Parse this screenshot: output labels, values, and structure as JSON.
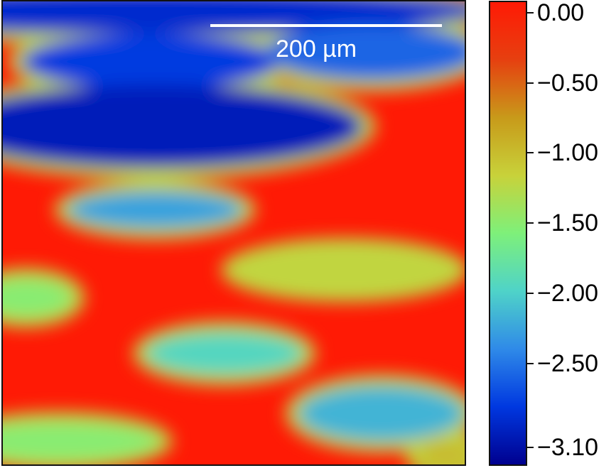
{
  "chart_data": {
    "type": "heatmap",
    "title": "",
    "xlabel": "",
    "ylabel": "",
    "value_range": [
      -3.1,
      0.0
    ],
    "colormap": [
      "#00008f",
      "#0038e0",
      "#2f8ae8",
      "#4fd3c8",
      "#7ef07a",
      "#c8d23a",
      "#c89a1a",
      "#e64010",
      "#ff1a05"
    ],
    "colorbar": {
      "ticks": [
        {
          "value": 0.0,
          "label": "0.00"
        },
        {
          "value": -0.5,
          "label": "−0.50"
        },
        {
          "value": -1.0,
          "label": "−1.00"
        },
        {
          "value": -1.5,
          "label": "−1.50"
        },
        {
          "value": -2.0,
          "label": "−2.00"
        },
        {
          "value": -2.5,
          "label": "−2.50"
        },
        {
          "value": -3.1,
          "label": "−3.10"
        }
      ]
    },
    "scale_bar": {
      "label": "200 µm"
    },
    "background_value": 0.0,
    "regions": [
      {
        "name": "top-band",
        "value": -2.8,
        "cx": 0.3,
        "cy": 0.02,
        "rx": 0.75,
        "ry": 0.05
      },
      {
        "name": "upper-left-blob",
        "value": -2.7,
        "cx": 0.32,
        "cy": 0.13,
        "rx": 0.28,
        "ry": 0.06
      },
      {
        "name": "upper-right-blob",
        "value": -2.5,
        "cx": 0.8,
        "cy": 0.11,
        "rx": 0.23,
        "ry": 0.06
      },
      {
        "name": "middle-left-blob",
        "value": -2.9,
        "cx": 0.33,
        "cy": 0.27,
        "rx": 0.45,
        "ry": 0.09
      },
      {
        "name": "center-blob",
        "value": -2.2,
        "cx": 0.33,
        "cy": 0.45,
        "rx": 0.19,
        "ry": 0.04
      },
      {
        "name": "right-band",
        "value": -1.2,
        "cx": 0.74,
        "cy": 0.58,
        "rx": 0.24,
        "ry": 0.045
      },
      {
        "name": "left-edge-blob",
        "value": -1.5,
        "cx": 0.05,
        "cy": 0.64,
        "rx": 0.1,
        "ry": 0.04
      },
      {
        "name": "lower-center-blob",
        "value": -1.9,
        "cx": 0.48,
        "cy": 0.76,
        "rx": 0.17,
        "ry": 0.045
      },
      {
        "name": "lower-right-blob",
        "value": -2.1,
        "cx": 0.82,
        "cy": 0.89,
        "rx": 0.18,
        "ry": 0.06
      },
      {
        "name": "bottom-left-blob",
        "value": -1.5,
        "cx": 0.12,
        "cy": 0.95,
        "rx": 0.22,
        "ry": 0.04
      },
      {
        "name": "bottom-right-blob",
        "value": -1.0,
        "cx": 0.96,
        "cy": 0.98,
        "rx": 0.06,
        "ry": 0.03
      }
    ]
  }
}
